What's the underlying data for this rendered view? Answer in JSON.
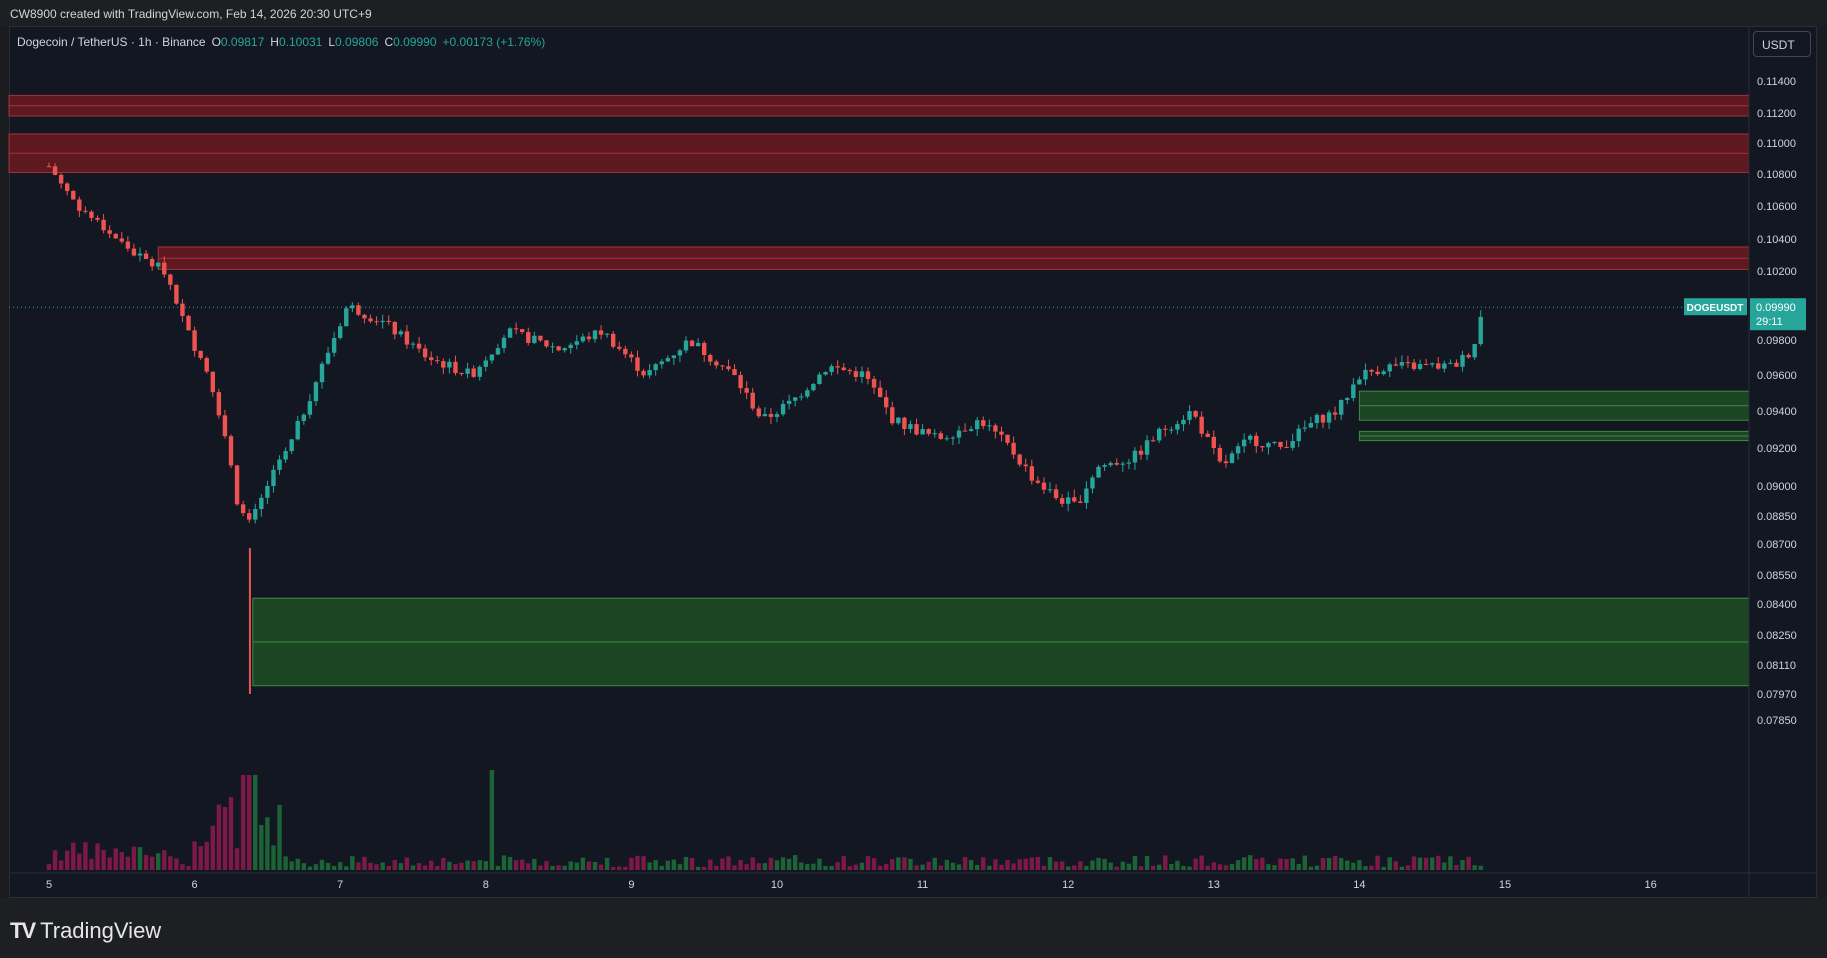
{
  "header": {
    "attribution": "CW8900 created with TradingView.com, Feb 14, 2026 20:30 UTC+9"
  },
  "legend": {
    "symbol": "Dogecoin / TetherUS · 1h · Binance",
    "open_label": "O",
    "open": "0.09817",
    "high_label": "H",
    "high": "0.10031",
    "low_label": "L",
    "low": "0.09806",
    "close_label": "C",
    "close": "0.09990",
    "change": "+0.00173 (+1.76%)"
  },
  "currency_button": "USDT",
  "price_label": {
    "ticker": "DOGEUSDT",
    "price": "0.09990",
    "countdown": "29:11"
  },
  "footer": {
    "brand": "TradingView"
  },
  "colors": {
    "up": "#26a69a",
    "down": "#ef5350",
    "resistance": "#6b1a1f",
    "support": "#1e4d24",
    "background": "#131722"
  },
  "chart_data": {
    "type": "candlestick",
    "title": "Dogecoin / TetherUS · 1h · Binance",
    "y_ticks": [
      "0.11400",
      "0.11200",
      "0.11000",
      "0.10800",
      "0.10600",
      "0.10400",
      "0.10200",
      "0.09800",
      "0.09600",
      "0.09400",
      "0.09200",
      "0.09000",
      "0.08850",
      "0.08700",
      "0.08550",
      "0.08400",
      "0.08250",
      "0.08110",
      "0.07970",
      "0.07850"
    ],
    "x_ticks": [
      "5",
      "6",
      "7",
      "8",
      "9",
      "10",
      "11",
      "12",
      "13",
      "14",
      "15",
      "16"
    ],
    "last_price": 0.0999,
    "zones": [
      {
        "kind": "resistance",
        "top": 0.1131,
        "bottom": 0.1118
      },
      {
        "kind": "resistance",
        "top": 0.1106,
        "bottom": 0.1081
      },
      {
        "kind": "resistance",
        "top": 0.1035,
        "bottom": 0.1021
      },
      {
        "kind": "support",
        "top": 0.0951,
        "bottom": 0.0935
      },
      {
        "kind": "support",
        "top": 0.0929,
        "bottom": 0.0924
      },
      {
        "kind": "support",
        "top": 0.0843,
        "bottom": 0.0801
      }
    ],
    "price_path": [
      [
        5,
        0.1085
      ],
      [
        5.2,
        0.106
      ],
      [
        5.4,
        0.1045
      ],
      [
        5.6,
        0.103
      ],
      [
        5.8,
        0.102
      ],
      [
        5.95,
        0.0985
      ],
      [
        6.1,
        0.096
      ],
      [
        6.2,
        0.093
      ],
      [
        6.3,
        0.089
      ],
      [
        6.38,
        0.088
      ],
      [
        6.5,
        0.09
      ],
      [
        6.65,
        0.092
      ],
      [
        6.85,
        0.096
      ],
      [
        7.05,
        0.1
      ],
      [
        7.3,
        0.099
      ],
      [
        7.6,
        0.097
      ],
      [
        7.9,
        0.096
      ],
      [
        8.15,
        0.0985
      ],
      [
        8.5,
        0.0975
      ],
      [
        8.8,
        0.0985
      ],
      [
        9.1,
        0.096
      ],
      [
        9.4,
        0.098
      ],
      [
        9.7,
        0.096
      ],
      [
        9.9,
        0.0935
      ],
      [
        10.1,
        0.0945
      ],
      [
        10.35,
        0.0965
      ],
      [
        10.6,
        0.096
      ],
      [
        10.8,
        0.0935
      ],
      [
        11.1,
        0.0925
      ],
      [
        11.4,
        0.0935
      ],
      [
        11.6,
        0.092
      ],
      [
        11.75,
        0.0905
      ],
      [
        11.9,
        0.0895
      ],
      [
        12.05,
        0.089
      ],
      [
        12.2,
        0.091
      ],
      [
        12.45,
        0.0915
      ],
      [
        12.65,
        0.093
      ],
      [
        12.85,
        0.094
      ],
      [
        13.05,
        0.091
      ],
      [
        13.25,
        0.0925
      ],
      [
        13.45,
        0.092
      ],
      [
        13.7,
        0.0935
      ],
      [
        13.85,
        0.094
      ],
      [
        14.0,
        0.096
      ],
      [
        14.2,
        0.0965
      ],
      [
        14.45,
        0.0965
      ],
      [
        14.65,
        0.0965
      ],
      [
        14.78,
        0.0975
      ],
      [
        14.85,
        0.0999
      ]
    ],
    "volume_spike_day": 6.38
  }
}
